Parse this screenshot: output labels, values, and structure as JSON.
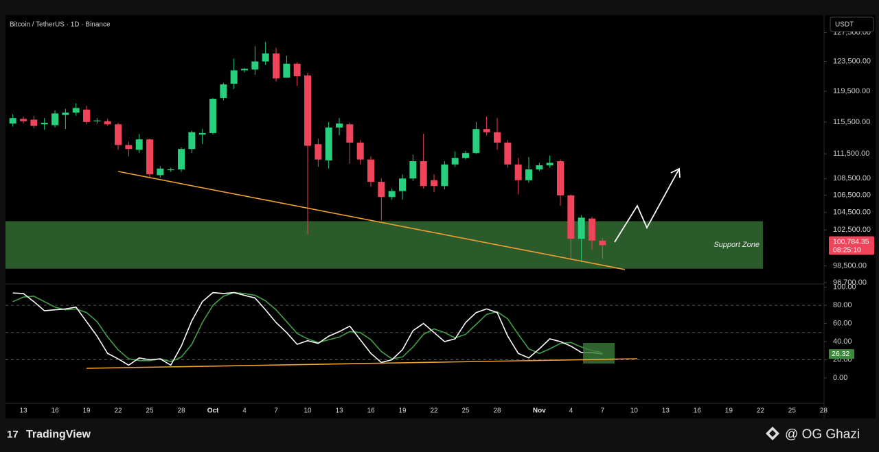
{
  "chart_data": [
    {
      "type": "candlestick",
      "title": "Bitcoin / TetherUS · 1D · Binance",
      "currency": "USDT",
      "log_scale": true,
      "up_color": "#26d07c",
      "down_color": "#f0445a",
      "categories": [
        null,
        "13",
        null,
        null,
        "16",
        null,
        null,
        "19",
        null,
        null,
        "22",
        null,
        null,
        "25",
        null,
        null,
        "28",
        null,
        null,
        "Oct",
        null,
        null,
        "4",
        null,
        null,
        "7",
        null,
        null,
        "10",
        null,
        null,
        "13",
        null,
        null,
        "16",
        null,
        null,
        "19",
        null,
        null,
        "22",
        null,
        null,
        "25",
        null,
        null,
        "28",
        null,
        null,
        null,
        "Nov",
        null,
        null,
        "4",
        null,
        null,
        "7",
        null,
        null,
        "10",
        null,
        null,
        "13",
        null,
        null,
        "16",
        null,
        null,
        "19",
        null,
        null,
        "22",
        null,
        null,
        "25",
        null,
        null,
        "28"
      ],
      "open": [
        115300,
        115900,
        115800,
        115200,
        115100,
        116400,
        116700,
        117100,
        115600,
        115600,
        115200,
        112600,
        112000,
        113300,
        108900,
        109500,
        109600,
        112100,
        113900,
        114100,
        118600,
        120500,
        122300,
        122400,
        123500,
        124600,
        121300,
        123200,
        121600,
        112700,
        110700,
        114800,
        115200,
        112900,
        110800,
        108100,
        106300,
        107000,
        108500,
        110600,
        108300,
        107600,
        110200,
        111000,
        111600,
        114600,
        114200,
        112900,
        110200,
        108300,
        109600,
        110100,
        110600,
        106500,
        101500,
        103800,
        101300,
        null,
        null,
        null,
        null,
        null,
        null,
        null,
        null,
        null,
        null,
        null,
        null,
        null,
        null,
        null,
        null,
        null,
        null,
        null,
        null,
        null
      ],
      "high": [
        116500,
        116200,
        116300,
        116000,
        117000,
        117200,
        117900,
        117600,
        116000,
        115900,
        115400,
        113000,
        114000,
        113400,
        110000,
        109800,
        112300,
        114400,
        114600,
        118600,
        120600,
        123900,
        122600,
        125600,
        126200,
        125400,
        124300,
        123400,
        122000,
        113400,
        115500,
        116000,
        115400,
        113200,
        111200,
        108500,
        107300,
        109000,
        111400,
        114000,
        109000,
        110600,
        111800,
        111900,
        115500,
        116200,
        116000,
        113200,
        111000,
        111100,
        110400,
        111300,
        110800,
        106600,
        104200,
        104000,
        101600,
        null,
        null,
        null,
        null,
        null,
        null,
        null,
        null,
        null,
        null,
        null,
        null,
        null,
        null,
        null,
        null,
        null,
        null,
        null,
        null,
        null
      ],
      "low": [
        114900,
        115300,
        114700,
        114500,
        114800,
        114600,
        116300,
        115200,
        115300,
        115000,
        112000,
        111200,
        111600,
        108700,
        108600,
        109300,
        109300,
        111600,
        112700,
        113900,
        118300,
        119800,
        122000,
        121700,
        123000,
        120800,
        121300,
        120200,
        102000,
        109900,
        109700,
        113800,
        110300,
        110200,
        107500,
        103600,
        106000,
        106000,
        108200,
        107300,
        106900,
        107200,
        109900,
        110800,
        111500,
        113800,
        112000,
        109800,
        106600,
        108000,
        109400,
        109800,
        105300,
        99200,
        98900,
        100300,
        99300,
        null,
        null,
        null,
        null,
        null,
        null,
        null,
        null,
        null,
        null,
        null,
        null,
        null,
        null,
        null,
        null,
        null,
        null,
        null,
        null,
        null
      ],
      "close": [
        116000,
        115600,
        115000,
        115400,
        116600,
        116700,
        117300,
        115500,
        115700,
        115200,
        112600,
        112100,
        113300,
        109000,
        109700,
        109600,
        112100,
        114200,
        114100,
        118500,
        120400,
        122300,
        122500,
        123500,
        124600,
        121200,
        123200,
        121500,
        112500,
        110800,
        114800,
        115300,
        112900,
        110800,
        108100,
        106300,
        107000,
        108500,
        110600,
        107600,
        107600,
        110200,
        111000,
        111600,
        114600,
        114200,
        112900,
        110200,
        108300,
        109600,
        110100,
        110400,
        106500,
        101500,
        103900,
        101300,
        100784.35,
        null,
        null,
        null,
        null,
        null,
        null,
        null,
        null,
        null,
        null,
        null,
        null,
        null,
        null,
        null,
        null,
        null,
        null,
        null,
        null,
        null
      ],
      "last_price_label": "100,784.35",
      "countdown": "08:25:10",
      "ylim": [
        96700,
        130000
      ],
      "yticks": [
        {
          "value": 127500,
          "label": "127,500.00"
        },
        {
          "value": 123500,
          "label": "123,500.00"
        },
        {
          "value": 119500,
          "label": "119,500.00"
        },
        {
          "value": 115500,
          "label": "115,500.00"
        },
        {
          "value": 111500,
          "label": "111,500.00"
        },
        {
          "value": 108500,
          "label": "108,500.00"
        },
        {
          "value": 106500,
          "label": "106,500.00"
        },
        {
          "value": 104500,
          "label": "104,500.00"
        },
        {
          "value": 102500,
          "label": "102,500.00"
        },
        {
          "value": 98500,
          "label": "98,500.00"
        },
        {
          "value": 96700,
          "label": "96,700.00"
        }
      ],
      "zones": [
        {
          "label": "Support Zone",
          "low": 98200,
          "high": 103500,
          "color": "#2b5a2b"
        }
      ]
    },
    {
      "type": "line",
      "series": [
        {
          "name": "K",
          "color": "#ffffff",
          "values": [
            93.6,
            93,
            84,
            74,
            75,
            76,
            78,
            62,
            46,
            27,
            21,
            14,
            22,
            20,
            21,
            14,
            35,
            63,
            84,
            94,
            93,
            94,
            91,
            88,
            75,
            61,
            50,
            37,
            41,
            38,
            46,
            51,
            57,
            42,
            27,
            17,
            20,
            31,
            52,
            60,
            50,
            40,
            43,
            61,
            72,
            76,
            72,
            46,
            27,
            22,
            32,
            43,
            40,
            35,
            28,
            28,
            26.32,
            null,
            null,
            null,
            null,
            null,
            null,
            null,
            null,
            null,
            null,
            null,
            null,
            null,
            null,
            null,
            null,
            null,
            null,
            null,
            null,
            null
          ]
        },
        {
          "name": "D",
          "color": "#43a047",
          "values": [
            84,
            89,
            90,
            84,
            78,
            75,
            76,
            72,
            62,
            45,
            31,
            21,
            19,
            19,
            21,
            18,
            23,
            37,
            61,
            80,
            90,
            94,
            93,
            91,
            85,
            75,
            62,
            49,
            43,
            39,
            42,
            45,
            51,
            50,
            42,
            29,
            21,
            23,
            34,
            48,
            54,
            50,
            44,
            48,
            59,
            70,
            73,
            65,
            48,
            32,
            27,
            32,
            38,
            39,
            34,
            30,
            28,
            null,
            null,
            null,
            null,
            null,
            null,
            null,
            null,
            null,
            null,
            null,
            null,
            null,
            null,
            null,
            null,
            null,
            null,
            null,
            null,
            null
          ]
        }
      ],
      "ylim": [
        -28,
        102
      ],
      "yticks": [
        {
          "value": 100,
          "label": "100.00"
        },
        {
          "value": 80,
          "label": "80.00"
        },
        {
          "value": 60,
          "label": "60.00"
        },
        {
          "value": 40,
          "label": "40.00"
        },
        {
          "value": 20,
          "label": "20.00"
        },
        {
          "value": 0,
          "label": "0.00"
        }
      ],
      "bands": [
        80,
        50,
        20
      ]
    }
  ],
  "branding": "TradingView",
  "watermark": "@ OG Ghazi"
}
